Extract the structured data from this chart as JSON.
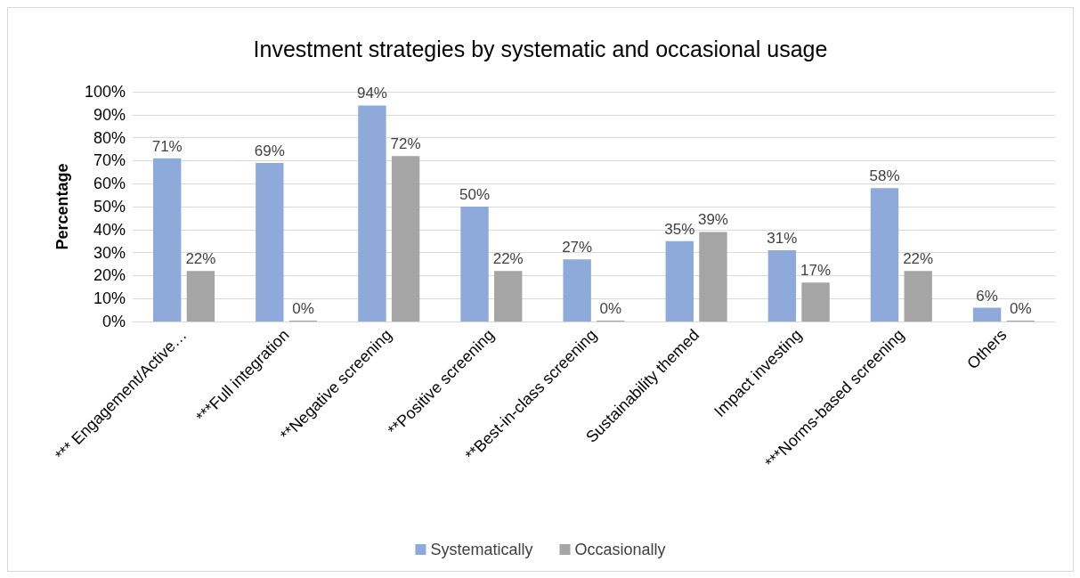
{
  "chart_data": {
    "type": "bar",
    "title": "Investment strategies by systematic and occasional usage",
    "ylabel": "Percentage",
    "categories": [
      "*** Engagement/Active…",
      "***Full integration",
      "**Negative screening",
      "**Positive screening",
      "**Best-in-class screening",
      "Sustainability themed",
      "Impact investing",
      "***Norms-based screening",
      "Others"
    ],
    "series": [
      {
        "name": "Systematically",
        "color": "#8eaadb",
        "values": [
          71,
          69,
          94,
          50,
          27,
          35,
          31,
          58,
          6
        ],
        "value_labels": [
          "71%",
          "69%",
          "94%",
          "50%",
          "27%",
          "35%",
          "31%",
          "58%",
          "6%"
        ]
      },
      {
        "name": "Occasionally",
        "color": "#a5a5a5",
        "values": [
          22,
          0,
          72,
          22,
          0,
          39,
          17,
          22,
          0
        ],
        "value_labels": [
          "22%",
          "0%",
          "72%",
          "22%",
          "0%",
          "39%",
          "17%",
          "22%",
          "0%"
        ]
      }
    ],
    "ylim": [
      0,
      100
    ],
    "yticks": [
      {
        "value": 0,
        "label": "0%"
      },
      {
        "value": 10,
        "label": "10%"
      },
      {
        "value": 20,
        "label": "20%"
      },
      {
        "value": 30,
        "label": "30%"
      },
      {
        "value": 40,
        "label": "40%"
      },
      {
        "value": 50,
        "label": "50%"
      },
      {
        "value": 60,
        "label": "60%"
      },
      {
        "value": 70,
        "label": "70%"
      },
      {
        "value": 80,
        "label": "80%"
      },
      {
        "value": 90,
        "label": "90%"
      },
      {
        "value": 100,
        "label": "100%"
      }
    ],
    "grid": "y",
    "legend": "bottom"
  }
}
